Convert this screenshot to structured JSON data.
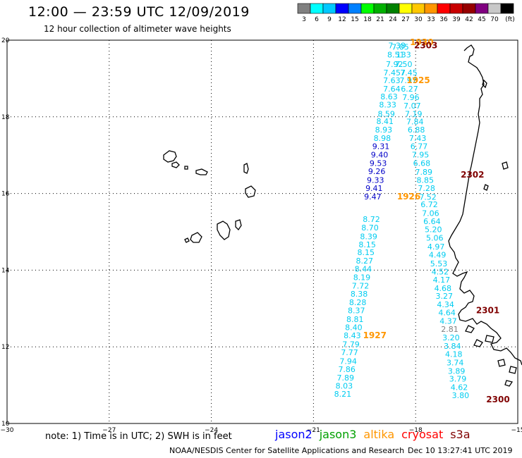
{
  "header": {
    "title": "12:00 — 23:59 UTC 12/09/2019",
    "subtitle": "12 hour collection of altimeter wave heights"
  },
  "colorbar": {
    "colors": [
      "#808080",
      "#00ffff",
      "#00c8ff",
      "#0000ff",
      "#0080ff",
      "#00ff00",
      "#00b000",
      "#008000",
      "#ffff00",
      "#ffc800",
      "#ff9600",
      "#ff0000",
      "#c80000",
      "#960000",
      "#800080",
      "#c8c8c8",
      "#000000"
    ],
    "labels": [
      "3",
      "6",
      "9",
      "12",
      "15",
      "18",
      "21",
      "24",
      "27",
      "30",
      "33",
      "36",
      "39",
      "42",
      "45",
      "70",
      "(ft)"
    ]
  },
  "axes": {
    "x_ticks": [
      {
        "value": -30,
        "label": "−30"
      },
      {
        "value": -27,
        "label": "−27"
      },
      {
        "value": -24,
        "label": "−24"
      },
      {
        "value": -21,
        "label": "−21"
      },
      {
        "value": -18,
        "label": "−18"
      },
      {
        "value": -15,
        "label": "−15"
      }
    ],
    "y_ticks": [
      {
        "value": 20,
        "label": "20"
      },
      {
        "value": 18,
        "label": "18"
      },
      {
        "value": 16,
        "label": "16"
      },
      {
        "value": 14,
        "label": "14"
      },
      {
        "value": 12,
        "label": "12"
      },
      {
        "value": 10,
        "label": "10"
      }
    ],
    "lon_range": [
      -30,
      -15
    ],
    "lat_range": [
      10,
      20
    ],
    "grid": "dotted"
  },
  "tracks": [
    {
      "mission": "altika",
      "color": "#00ccf0",
      "points": [
        {
          "lon": -18.55,
          "lat": 19.79,
          "text": "7.38"
        },
        {
          "lon": -18.45,
          "lat": 19.75,
          "text": "7.05"
        },
        {
          "lon": -18.58,
          "lat": 19.55,
          "text": "8.51"
        },
        {
          "lon": -18.35,
          "lat": 19.55,
          "text": "133"
        },
        {
          "lon": -18.62,
          "lat": 19.3,
          "text": "7.92"
        },
        {
          "lon": -18.35,
          "lat": 19.3,
          "text": "7.50"
        },
        {
          "lon": -18.62,
          "lat": 19.08,
          "text": "7.457"
        },
        {
          "lon": -18.2,
          "lat": 19.08,
          "text": "7.45"
        },
        {
          "lon": -18.7,
          "lat": 18.88,
          "text": "7.63"
        },
        {
          "lon": -18.22,
          "lat": 18.88,
          "text": "7.97"
        },
        {
          "lon": -18.7,
          "lat": 18.66,
          "text": "7.64"
        },
        {
          "lon": -18.18,
          "lat": 18.66,
          "text": "6.27"
        },
        {
          "lon": -18.78,
          "lat": 18.46,
          "text": "8.63"
        },
        {
          "lon": -18.14,
          "lat": 18.44,
          "text": "7.96"
        },
        {
          "lon": -18.82,
          "lat": 18.24,
          "text": "8.33"
        },
        {
          "lon": -18.1,
          "lat": 18.22,
          "text": "7.07"
        },
        {
          "lon": -18.86,
          "lat": 18.01,
          "text": "8.59"
        },
        {
          "lon": -18.06,
          "lat": 18.01,
          "text": "7.19"
        },
        {
          "lon": -18.9,
          "lat": 17.81,
          "text": "8.41"
        },
        {
          "lon": -18.02,
          "lat": 17.8,
          "text": "7.84"
        },
        {
          "lon": -18.94,
          "lat": 17.59,
          "text": "8.93"
        },
        {
          "lon": -17.98,
          "lat": 17.59,
          "text": "6.88"
        },
        {
          "lon": -18.98,
          "lat": 17.37,
          "text": "8.98"
        },
        {
          "lon": -17.94,
          "lat": 17.37,
          "text": "7.43"
        },
        {
          "lon": -17.9,
          "lat": 17.16,
          "text": "6.77"
        },
        {
          "lon": -17.86,
          "lat": 16.94,
          "text": "7.95"
        },
        {
          "lon": -17.82,
          "lat": 16.72,
          "text": "6.68"
        },
        {
          "lon": -17.76,
          "lat": 16.49,
          "text": "7.89"
        },
        {
          "lon": -17.72,
          "lat": 16.28,
          "text": "8.85"
        },
        {
          "lon": -17.68,
          "lat": 16.07,
          "text": "7.28"
        },
        {
          "lon": -17.64,
          "lat": 15.84,
          "text": "7.52"
        },
        {
          "lon": -17.6,
          "lat": 15.64,
          "text": "6.72"
        },
        {
          "lon": -17.56,
          "lat": 15.41,
          "text": "7.06"
        },
        {
          "lon": -17.52,
          "lat": 15.2,
          "text": "6.64"
        },
        {
          "lon": -19.3,
          "lat": 15.26,
          "text": "8.72"
        },
        {
          "lon": -19.34,
          "lat": 15.04,
          "text": "8.70"
        },
        {
          "lon": -19.38,
          "lat": 14.81,
          "text": "8.39"
        },
        {
          "lon": -19.42,
          "lat": 14.6,
          "text": "8.15"
        },
        {
          "lon": -19.46,
          "lat": 14.39,
          "text": "8.15"
        },
        {
          "lon": -19.5,
          "lat": 14.17,
          "text": "8.27"
        },
        {
          "lon": -19.54,
          "lat": 13.96,
          "text": "8.44"
        },
        {
          "lon": -19.58,
          "lat": 13.74,
          "text": "8.19"
        },
        {
          "lon": -19.62,
          "lat": 13.52,
          "text": "7.72"
        },
        {
          "lon": -19.66,
          "lat": 13.31,
          "text": "8.38"
        },
        {
          "lon": -19.7,
          "lat": 13.09,
          "text": "8.28"
        },
        {
          "lon": -19.74,
          "lat": 12.88,
          "text": "8.37"
        },
        {
          "lon": -19.78,
          "lat": 12.65,
          "text": "8.81"
        },
        {
          "lon": -19.82,
          "lat": 12.44,
          "text": "8.40"
        },
        {
          "lon": -19.86,
          "lat": 12.22,
          "text": "8.43"
        },
        {
          "lon": -19.9,
          "lat": 11.99,
          "text": "7.79"
        },
        {
          "lon": -19.94,
          "lat": 11.78,
          "text": "7.77"
        },
        {
          "lon": -19.98,
          "lat": 11.55,
          "text": "7.94"
        },
        {
          "lon": -20.02,
          "lat": 11.34,
          "text": "7.86"
        },
        {
          "lon": -20.06,
          "lat": 11.12,
          "text": "7.89"
        },
        {
          "lon": -20.1,
          "lat": 10.91,
          "text": "8.03"
        },
        {
          "lon": -20.14,
          "lat": 10.7,
          "text": "8.21"
        },
        {
          "lon": -17.48,
          "lat": 14.99,
          "text": "5.20"
        },
        {
          "lon": -17.44,
          "lat": 14.77,
          "text": "5.06"
        },
        {
          "lon": -17.4,
          "lat": 14.54,
          "text": "4.97"
        },
        {
          "lon": -17.36,
          "lat": 14.33,
          "text": "4.49"
        },
        {
          "lon": -17.32,
          "lat": 14.1,
          "text": "5.53"
        },
        {
          "lon": -17.28,
          "lat": 13.89,
          "text": "4.52"
        },
        {
          "lon": -17.24,
          "lat": 13.68,
          "text": "4.17"
        },
        {
          "lon": -17.2,
          "lat": 13.46,
          "text": "4.68"
        },
        {
          "lon": -17.16,
          "lat": 13.25,
          "text": "3.27"
        },
        {
          "lon": -17.12,
          "lat": 13.03,
          "text": "4.34"
        },
        {
          "lon": -17.08,
          "lat": 12.82,
          "text": "4.64"
        },
        {
          "lon": -17.04,
          "lat": 12.6,
          "text": "4.37"
        },
        {
          "lon": -16.96,
          "lat": 12.17,
          "text": "3.20"
        },
        {
          "lon": -16.92,
          "lat": 11.95,
          "text": "3.84"
        },
        {
          "lon": -16.88,
          "lat": 11.74,
          "text": "4.18"
        },
        {
          "lon": -16.84,
          "lat": 11.52,
          "text": "3.74"
        },
        {
          "lon": -16.8,
          "lat": 11.3,
          "text": "3.89"
        },
        {
          "lon": -16.76,
          "lat": 11.09,
          "text": "3.79"
        },
        {
          "lon": -16.72,
          "lat": 10.87,
          "text": "4.62"
        },
        {
          "lon": -16.68,
          "lat": 10.66,
          "text": "3.80"
        }
      ]
    },
    {
      "mission": "jason2",
      "color": "#0000c8",
      "points": [
        {
          "lon": -19.02,
          "lat": 17.16,
          "text": "9.31"
        },
        {
          "lon": -19.06,
          "lat": 16.94,
          "text": "9.40"
        },
        {
          "lon": -19.1,
          "lat": 16.72,
          "text": "9.53"
        },
        {
          "lon": -19.14,
          "lat": 16.51,
          "text": "9.26"
        },
        {
          "lon": -19.18,
          "lat": 16.28,
          "text": "9.33"
        },
        {
          "lon": -19.22,
          "lat": 16.07,
          "text": "9.41"
        },
        {
          "lon": -19.26,
          "lat": 15.85,
          "text": "9.47"
        }
      ]
    },
    {
      "mission": "gray",
      "color": "#808080",
      "points": [
        {
          "lon": -17.0,
          "lat": 12.39,
          "text": "2.81"
        }
      ]
    }
  ],
  "time_labels": [
    {
      "lon": -17.82,
      "lat": 19.87,
      "text": "1930",
      "color": "#ff9600"
    },
    {
      "lon": -17.7,
      "lat": 19.79,
      "text": "2303",
      "color": "#800000"
    },
    {
      "lon": -17.92,
      "lat": 18.88,
      "text": "1925",
      "color": "#ff9600"
    },
    {
      "lon": -16.33,
      "lat": 16.42,
      "text": "2302",
      "color": "#800000"
    },
    {
      "lon": -18.2,
      "lat": 15.85,
      "text": "1926",
      "color": "#ff9600"
    },
    {
      "lon": -15.88,
      "lat": 12.88,
      "text": "2301",
      "color": "#800000"
    },
    {
      "lon": -19.2,
      "lat": 12.22,
      "text": "1927",
      "color": "#ff9600"
    },
    {
      "lon": -15.58,
      "lat": 10.55,
      "text": "2300",
      "color": "#800000"
    }
  ],
  "notes": {
    "note": "note: 1) Time is in UTC; 2) SWH is in feet",
    "missions": [
      {
        "name": "jason2",
        "color": "#0000ff"
      },
      {
        "name": "jason3",
        "color": "#00a000"
      },
      {
        "name": "altika",
        "color": "#ff9600"
      },
      {
        "name": "cryosat",
        "color": "#ff0000"
      },
      {
        "name": "s3a",
        "color": "#800000"
      }
    ]
  },
  "footer": {
    "left": "NOAA/NESDIS Center for Satellite Applications and Research",
    "right": "Dec 10 13:27:41 UTC 2019"
  }
}
